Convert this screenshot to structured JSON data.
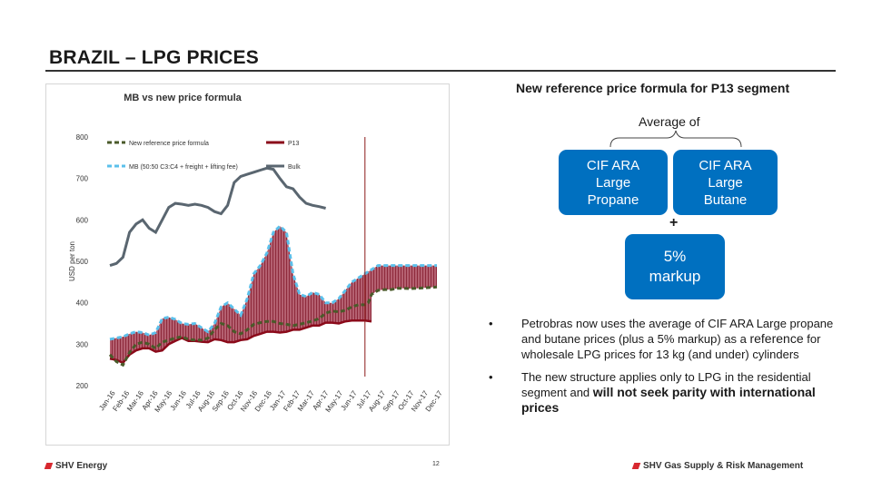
{
  "slide": {
    "title": "BRAZIL – LPG PRICES",
    "page_number": "12"
  },
  "footer": {
    "left_brand": "SHV Energy",
    "right_brand": "SHV Gas Supply & Risk Management",
    "left_logo_icon": "shv-flame-icon",
    "right_logo_icon": "shv-flame-icon"
  },
  "right_panel": {
    "heading": "New reference price formula for P13 segment",
    "average_label": "Average of",
    "box_propane": "CIF ARA Large Propane",
    "box_butane": "CIF ARA Large Butane",
    "plus": "+",
    "box_markup": "5% markup",
    "bullets": [
      {
        "pre": "Petrobras now uses the average of CIF ARA Large propane and butane prices (plus a 5% markup) as a ",
        "emph": "reference",
        "post": " for wholesale LPG prices for 13 kg (and under) cylinders"
      },
      {
        "pre": "The new structure applies only to LPG in the residential segment and ",
        "emph": "will not seek parity with international prices",
        "post": ""
      }
    ],
    "bullet_marker": "•"
  },
  "colors": {
    "accent_blue": "#0070c0",
    "formula_line": "#4a5a2a",
    "p13_line": "#8b0a1a",
    "mb_line": "#5bc0eb",
    "bulk_line": "#5a6670",
    "fill": "#b46070",
    "marker": "#8b1a1a",
    "brand_red": "#d7282f"
  },
  "chart_data": {
    "type": "line",
    "title": "MB vs new price formula",
    "ylabel": "USD per ton",
    "xlabel": "",
    "ylim": [
      200,
      800
    ],
    "yticks": [
      200,
      300,
      400,
      500,
      600,
      700,
      800
    ],
    "grid": false,
    "legend_position": "top",
    "categories": [
      "Jan-16",
      "Feb-16",
      "Mar-16",
      "Apr-16",
      "May-16",
      "Jun-16",
      "Jul-16",
      "Aug-16",
      "Sep-16",
      "Oct-16",
      "Nov-16",
      "Dec-16",
      "Jan-17",
      "Feb-17",
      "Mar-17",
      "Apr-17",
      "May-17",
      "Jun-17",
      "Jul-17",
      "Aug-17",
      "Sep-17",
      "Oct-17",
      "Nov-17",
      "Dec-17"
    ],
    "x_weeks": [
      0,
      1,
      2,
      3,
      4,
      5,
      6,
      7,
      8,
      9,
      10,
      11,
      12,
      13,
      14,
      15,
      16,
      17,
      18,
      19,
      20,
      21,
      22,
      23,
      24,
      25,
      26,
      27,
      28,
      29,
      30,
      31,
      32,
      33,
      34,
      35,
      36,
      37,
      38,
      39,
      40,
      41,
      42,
      43,
      44,
      45,
      46,
      47,
      48,
      49,
      50,
      51,
      52,
      53,
      54,
      55,
      56,
      57,
      58,
      59,
      60,
      61,
      62,
      63,
      64,
      65,
      66,
      67,
      68,
      69,
      70,
      71,
      72,
      73,
      74,
      75,
      76,
      77,
      78,
      79,
      80,
      81,
      82,
      83,
      84,
      85,
      86,
      87,
      88,
      89,
      90,
      91,
      92,
      93,
      94,
      95,
      96,
      97,
      98,
      99,
      100
    ],
    "weeks_per_month": 4.35,
    "series": [
      {
        "name": "New reference price formula",
        "style": "dashed",
        "points": [
          [
            0,
            275
          ],
          [
            2,
            258
          ],
          [
            4,
            250
          ],
          [
            6,
            280
          ],
          [
            8,
            300
          ],
          [
            10,
            305
          ],
          [
            12,
            300
          ],
          [
            14,
            290
          ],
          [
            16,
            305
          ],
          [
            18,
            310
          ],
          [
            20,
            315
          ],
          [
            22,
            318
          ],
          [
            24,
            312
          ],
          [
            26,
            310
          ],
          [
            28,
            310
          ],
          [
            30,
            315
          ],
          [
            32,
            335
          ],
          [
            34,
            350
          ],
          [
            36,
            345
          ],
          [
            38,
            330
          ],
          [
            40,
            325
          ],
          [
            42,
            335
          ],
          [
            44,
            348
          ],
          [
            46,
            352
          ],
          [
            48,
            355
          ],
          [
            50,
            355
          ],
          [
            52,
            350
          ],
          [
            54,
            348
          ],
          [
            56,
            345
          ],
          [
            58,
            348
          ],
          [
            60,
            352
          ],
          [
            62,
            356
          ],
          [
            64,
            362
          ],
          [
            66,
            375
          ],
          [
            68,
            380
          ],
          [
            70,
            378
          ],
          [
            72,
            382
          ],
          [
            74,
            390
          ],
          [
            76,
            395
          ],
          [
            78,
            395
          ],
          [
            79,
            400
          ],
          [
            80,
            420
          ],
          [
            82,
            430
          ],
          [
            84,
            432
          ],
          [
            86,
            432
          ],
          [
            88,
            435
          ],
          [
            90,
            435
          ],
          [
            92,
            434
          ],
          [
            94,
            435
          ],
          [
            96,
            436
          ],
          [
            98,
            437
          ],
          [
            100,
            438
          ]
        ]
      },
      {
        "name": "P13",
        "style": "solid",
        "points": [
          [
            0,
            265
          ],
          [
            2,
            262
          ],
          [
            4,
            255
          ],
          [
            6,
            275
          ],
          [
            8,
            285
          ],
          [
            10,
            290
          ],
          [
            12,
            290
          ],
          [
            14,
            282
          ],
          [
            16,
            285
          ],
          [
            18,
            300
          ],
          [
            20,
            308
          ],
          [
            22,
            315
          ],
          [
            24,
            308
          ],
          [
            26,
            308
          ],
          [
            28,
            306
          ],
          [
            30,
            305
          ],
          [
            32,
            312
          ],
          [
            34,
            310
          ],
          [
            36,
            305
          ],
          [
            38,
            305
          ],
          [
            40,
            310
          ],
          [
            42,
            312
          ],
          [
            44,
            320
          ],
          [
            46,
            325
          ],
          [
            48,
            330
          ],
          [
            50,
            330
          ],
          [
            52,
            328
          ],
          [
            54,
            330
          ],
          [
            56,
            335
          ],
          [
            58,
            335
          ],
          [
            60,
            340
          ],
          [
            62,
            345
          ],
          [
            64,
            345
          ],
          [
            66,
            352
          ],
          [
            68,
            352
          ],
          [
            70,
            350
          ],
          [
            72,
            355
          ],
          [
            74,
            357
          ],
          [
            76,
            357
          ],
          [
            78,
            357
          ],
          [
            80,
            355
          ]
        ]
      },
      {
        "name": "MB (50:50 C3:C4 + freight + lifting fee)",
        "style": "dashed",
        "points": [
          [
            0,
            312
          ],
          [
            2,
            315
          ],
          [
            4,
            318
          ],
          [
            6,
            325
          ],
          [
            8,
            330
          ],
          [
            10,
            328
          ],
          [
            12,
            322
          ],
          [
            14,
            328
          ],
          [
            16,
            362
          ],
          [
            18,
            365
          ],
          [
            20,
            360
          ],
          [
            22,
            350
          ],
          [
            24,
            348
          ],
          [
            26,
            350
          ],
          [
            28,
            340
          ],
          [
            30,
            330
          ],
          [
            32,
            350
          ],
          [
            34,
            390
          ],
          [
            36,
            400
          ],
          [
            38,
            385
          ],
          [
            40,
            370
          ],
          [
            42,
            410
          ],
          [
            44,
            470
          ],
          [
            46,
            490
          ],
          [
            48,
            520
          ],
          [
            50,
            570
          ],
          [
            52,
            585
          ],
          [
            54,
            570
          ],
          [
            56,
            470
          ],
          [
            58,
            420
          ],
          [
            60,
            415
          ],
          [
            62,
            425
          ],
          [
            64,
            420
          ],
          [
            66,
            400
          ],
          [
            68,
            400
          ],
          [
            70,
            410
          ],
          [
            72,
            430
          ],
          [
            74,
            450
          ],
          [
            76,
            460
          ],
          [
            78,
            470
          ],
          [
            80,
            480
          ],
          [
            82,
            490
          ],
          [
            84,
            490
          ],
          [
            86,
            490
          ],
          [
            88,
            490
          ],
          [
            90,
            490
          ],
          [
            92,
            490
          ],
          [
            94,
            490
          ],
          [
            96,
            490
          ],
          [
            98,
            490
          ],
          [
            100,
            490
          ]
        ]
      },
      {
        "name": "Bulk",
        "style": "solid",
        "points": [
          [
            0,
            490
          ],
          [
            2,
            495
          ],
          [
            4,
            510
          ],
          [
            6,
            570
          ],
          [
            8,
            590
          ],
          [
            10,
            600
          ],
          [
            12,
            580
          ],
          [
            14,
            570
          ],
          [
            16,
            600
          ],
          [
            18,
            630
          ],
          [
            20,
            640
          ],
          [
            22,
            638
          ],
          [
            24,
            635
          ],
          [
            26,
            638
          ],
          [
            28,
            635
          ],
          [
            30,
            630
          ],
          [
            32,
            620
          ],
          [
            34,
            615
          ],
          [
            36,
            635
          ],
          [
            38,
            690
          ],
          [
            40,
            705
          ],
          [
            42,
            710
          ],
          [
            44,
            715
          ],
          [
            46,
            720
          ],
          [
            48,
            725
          ],
          [
            50,
            722
          ],
          [
            52,
            700
          ],
          [
            54,
            680
          ],
          [
            56,
            675
          ],
          [
            58,
            655
          ],
          [
            60,
            640
          ],
          [
            62,
            635
          ],
          [
            64,
            632
          ],
          [
            66,
            628
          ]
        ]
      }
    ],
    "vertical_marker_week": 78
  }
}
